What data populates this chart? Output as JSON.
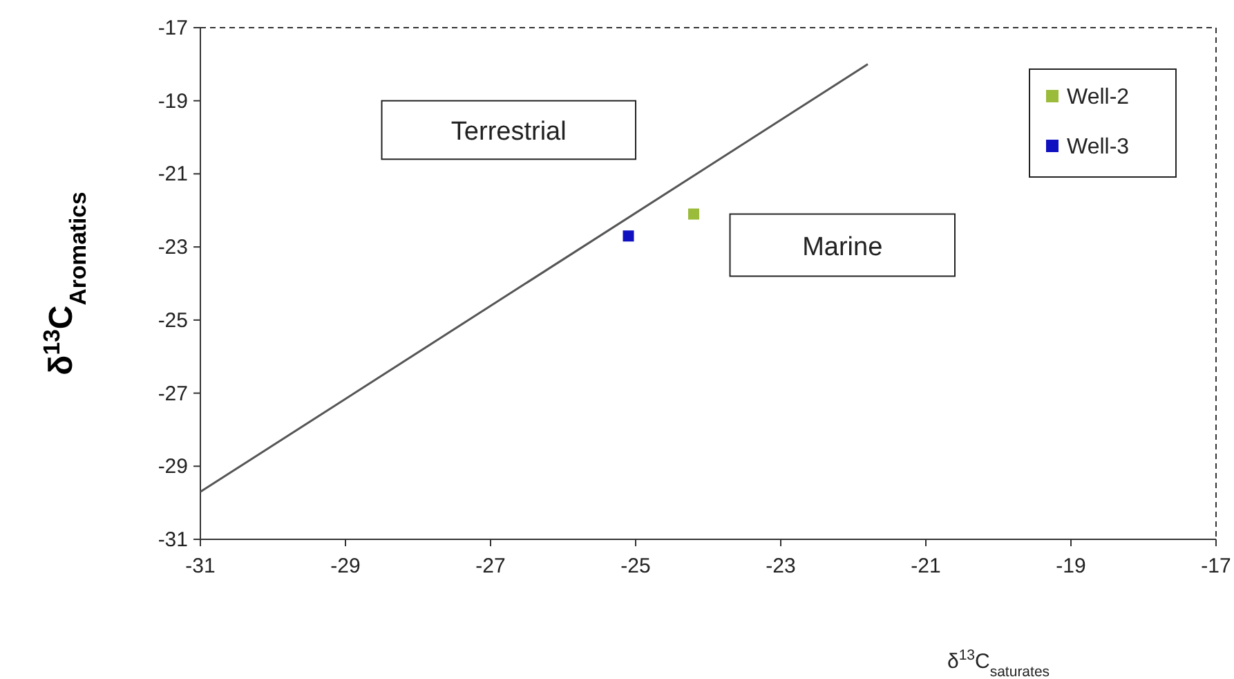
{
  "chart_data": {
    "type": "scatter",
    "xlabel": "δ$^{13}$C$_{saturates}$",
    "ylabel": "δ$^{13}$C$_{Aromatics}$",
    "xlim": [
      -31,
      -17
    ],
    "ylim": [
      -31,
      -17
    ],
    "xticks": [
      -31,
      -29,
      -27,
      -25,
      -23,
      -21,
      -19,
      -17
    ],
    "yticks": [
      -31,
      -29,
      -27,
      -25,
      -23,
      -21,
      -19,
      -17
    ],
    "series": [
      {
        "name": "Well-2",
        "color": "#9bbb3b",
        "x": [
          -24.2
        ],
        "values": [
          -22.1
        ]
      },
      {
        "name": "Well-3",
        "color": "#1010c0",
        "x": [
          -25.1
        ],
        "values": [
          -22.7
        ]
      },
      {
        "type": "line",
        "marker": "none",
        "color": "#555555",
        "x": [
          -31,
          -21.8
        ],
        "values": [
          -29.7,
          -18
        ]
      }
    ],
    "marker": "square",
    "legend": "top right",
    "grid": false,
    "annotations": [
      "Terrestrial",
      "Marine"
    ]
  }
}
